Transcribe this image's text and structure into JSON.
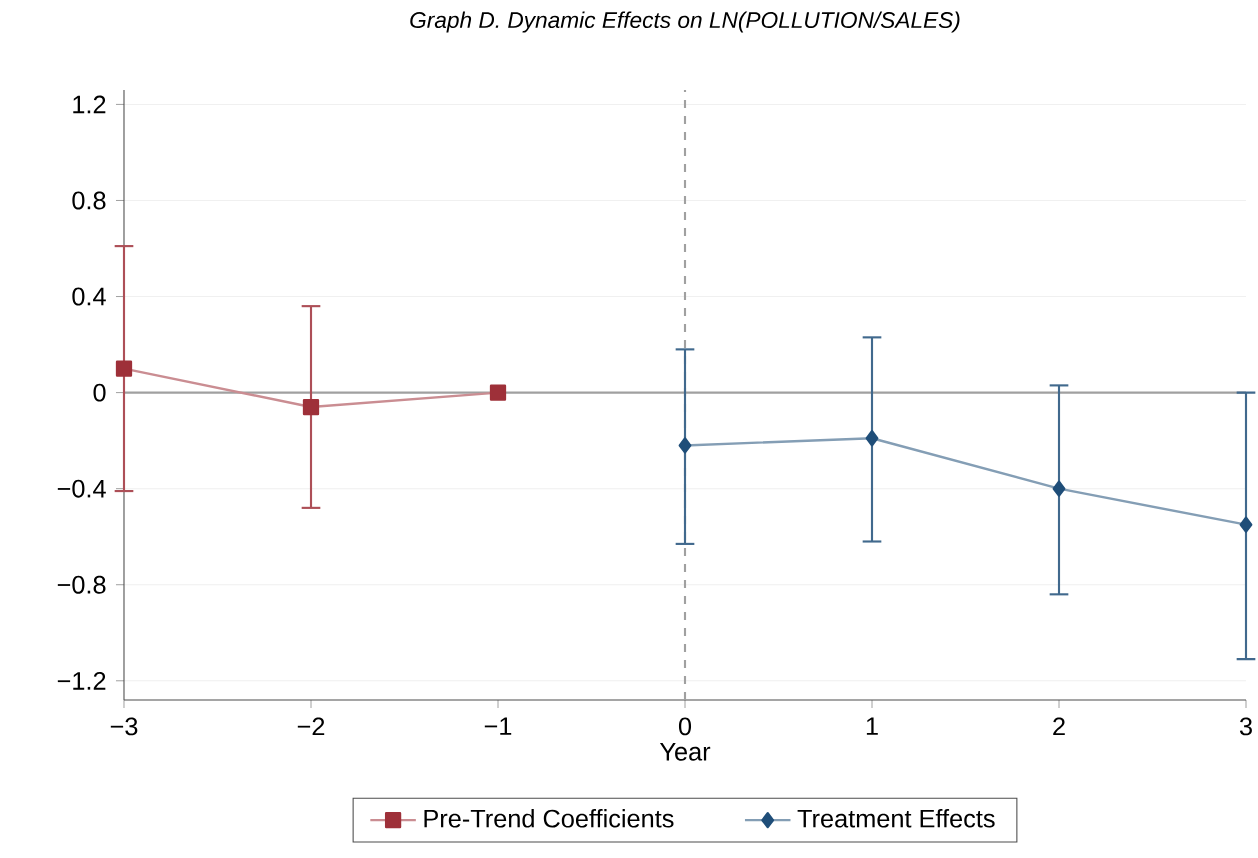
{
  "chart_data": {
    "type": "line",
    "title": "Graph D. Dynamic Effects on LN(POLLUTION/SALES)",
    "xlabel": "Year",
    "xlim": [
      -3,
      3
    ],
    "xticks": [
      {
        "value": -3,
        "label": "−3"
      },
      {
        "value": -2,
        "label": "−2"
      },
      {
        "value": -1,
        "label": "−1"
      },
      0,
      1,
      2,
      3
    ],
    "ylim": [
      -1.28,
      1.26
    ],
    "yticks": [
      {
        "value": -1.2,
        "label": "−1.2"
      },
      {
        "value": -0.8,
        "label": "−0.8"
      },
      {
        "value": -0.4,
        "label": "−0.4"
      },
      0,
      0.4,
      0.8,
      1.2
    ],
    "grid": "y",
    "legend": "bottom",
    "ref_lines": [
      {
        "axis": "y",
        "value": 0,
        "color": "#a0a0a0",
        "line_style": "solid"
      },
      {
        "axis": "x",
        "value": 0,
        "color": "#a0a0a0",
        "line_style": "dashed"
      }
    ],
    "series": [
      {
        "name": "Pre-Trend Coefficients",
        "color": "#9e3039",
        "marker": "square",
        "x": [
          -3,
          -2,
          -1
        ],
        "values": [
          0.1,
          -0.06,
          0
        ],
        "errors": [
          [
            -0.41,
            0.61
          ],
          [
            -0.48,
            0.36
          ],
          null
        ]
      },
      {
        "name": "Treatment Effects",
        "color": "#1f4e79",
        "marker": "diamond",
        "x": [
          0,
          1,
          2,
          3
        ],
        "values": [
          -0.22,
          -0.19,
          -0.4,
          -0.55
        ],
        "errors": [
          [
            -0.63,
            0.18
          ],
          [
            -0.62,
            0.23
          ],
          [
            -0.84,
            0.03
          ],
          [
            -1.11,
            0.0
          ]
        ]
      }
    ]
  }
}
